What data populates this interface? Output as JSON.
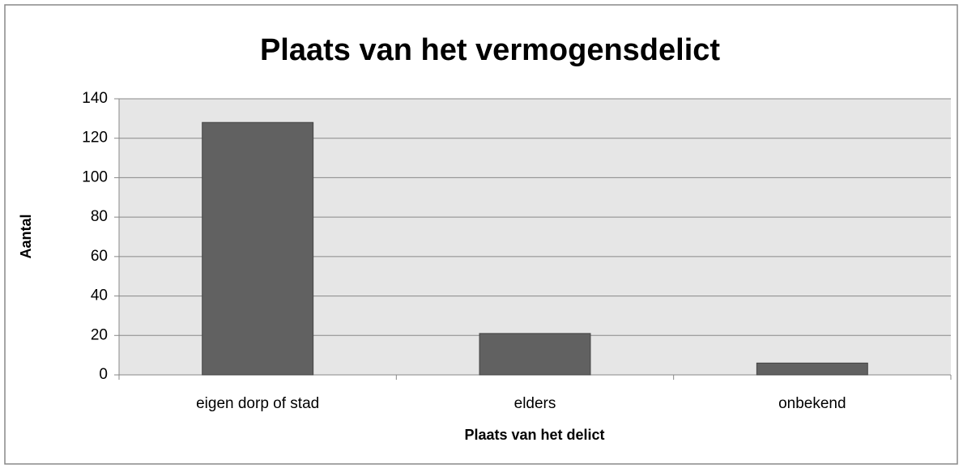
{
  "chart_data": {
    "type": "bar",
    "title": "Plaats van het vermogensdelict",
    "categories": [
      "eigen dorp of stad",
      "elders",
      "onbekend"
    ],
    "values": [
      128,
      21,
      6
    ],
    "color": "#616161",
    "ylim": [
      0,
      140
    ],
    "yticks": [
      0,
      20,
      40,
      60,
      80,
      100,
      120,
      140
    ],
    "grid": true,
    "xlabel": "Plaats van het delict",
    "ylabel": "Aantal"
  }
}
